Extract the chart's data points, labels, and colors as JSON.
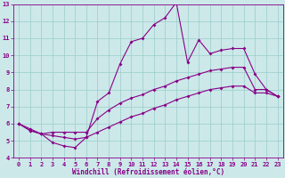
{
  "xlabel": "Windchill (Refroidissement éolien,°C)",
  "background_color": "#cce8e8",
  "line_color": "#880088",
  "grid_color": "#99cccc",
  "spine_color": "#880088",
  "xlim": [
    -0.5,
    23.5
  ],
  "ylim": [
    4,
    13
  ],
  "xticks": [
    0,
    1,
    2,
    3,
    4,
    5,
    6,
    7,
    8,
    9,
    10,
    11,
    12,
    13,
    14,
    15,
    16,
    17,
    18,
    19,
    20,
    21,
    22,
    23
  ],
  "yticks": [
    4,
    5,
    6,
    7,
    8,
    9,
    10,
    11,
    12,
    13
  ],
  "line1_x": [
    0,
    1,
    2,
    3,
    4,
    5,
    6,
    7,
    8,
    9,
    10,
    11,
    12,
    13,
    14,
    15,
    16,
    17,
    18,
    19,
    20,
    21,
    22,
    23
  ],
  "line1_y": [
    6.0,
    5.7,
    5.4,
    4.9,
    4.7,
    4.6,
    5.2,
    7.3,
    7.8,
    9.5,
    10.8,
    11.0,
    11.8,
    12.2,
    13.1,
    9.6,
    10.9,
    10.1,
    10.3,
    10.4,
    10.4,
    8.9,
    8.0,
    7.6
  ],
  "line2_x": [
    0,
    1,
    2,
    3,
    4,
    5,
    6,
    7,
    8,
    9,
    10,
    11,
    12,
    13,
    14,
    15,
    16,
    17,
    18,
    19,
    20,
    21,
    22,
    23
  ],
  "line2_y": [
    6.0,
    5.6,
    5.4,
    5.5,
    5.5,
    5.5,
    5.5,
    6.3,
    6.8,
    7.2,
    7.5,
    7.7,
    8.0,
    8.2,
    8.5,
    8.7,
    8.9,
    9.1,
    9.2,
    9.3,
    9.3,
    8.0,
    8.0,
    7.6
  ],
  "line3_x": [
    0,
    1,
    2,
    3,
    4,
    5,
    6,
    7,
    8,
    9,
    10,
    11,
    12,
    13,
    14,
    15,
    16,
    17,
    18,
    19,
    20,
    21,
    22,
    23
  ],
  "line3_y": [
    6.0,
    5.6,
    5.4,
    5.3,
    5.2,
    5.1,
    5.2,
    5.5,
    5.8,
    6.1,
    6.4,
    6.6,
    6.9,
    7.1,
    7.4,
    7.6,
    7.8,
    8.0,
    8.1,
    8.2,
    8.2,
    7.8,
    7.8,
    7.6
  ],
  "marker": "D",
  "markersize": 2.0,
  "linewidth": 0.8,
  "tick_fontsize": 5.0,
  "xlabel_fontsize": 5.5
}
